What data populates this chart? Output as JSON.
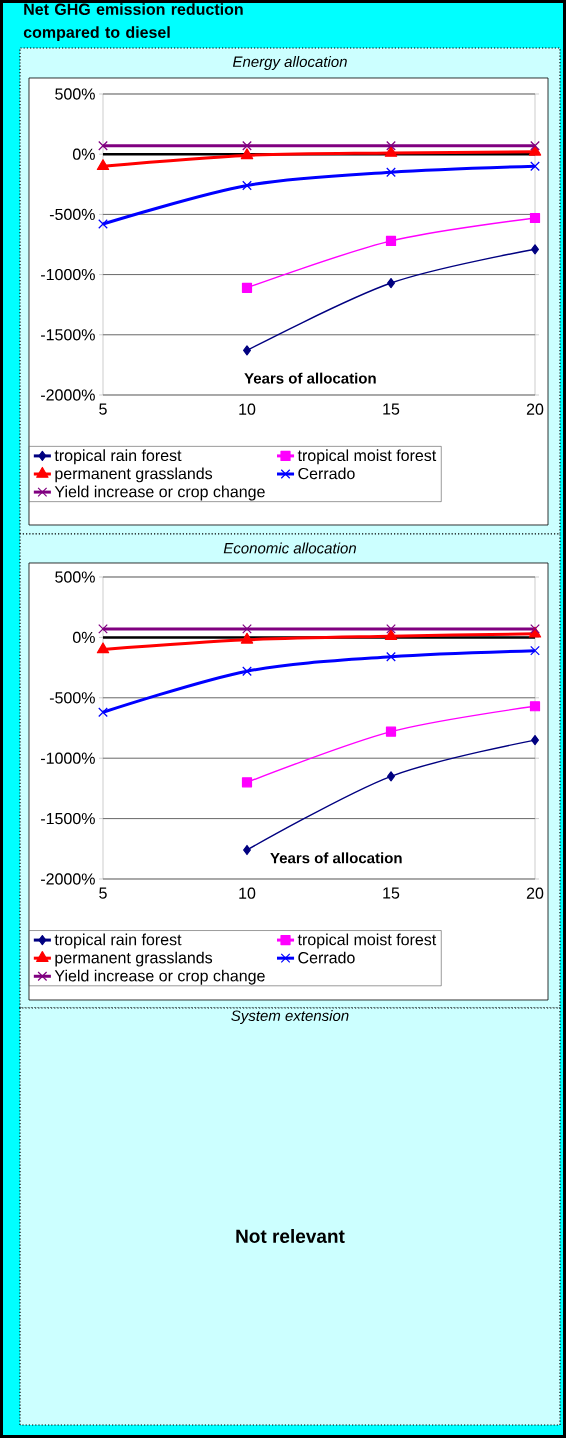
{
  "chart_data": [
    {
      "type": "line",
      "title": "Net GHG emission reduction compared to diesel",
      "subtitle": "Energy allocation",
      "xlabel": "Years of allocation",
      "x": [
        5,
        10,
        15,
        20
      ],
      "xlim": [
        5,
        20
      ],
      "xticks": [
        5,
        10,
        15,
        20
      ],
      "ylim": [
        -2000,
        500
      ],
      "yticks": [
        {
          "value": -2000,
          "label": "-2000%"
        },
        {
          "value": -1500,
          "label": "-1500%"
        },
        {
          "value": -1000,
          "label": "-1000%"
        },
        {
          "value": -500,
          "label": "-500%"
        },
        {
          "value": 0,
          "label": "0%"
        },
        {
          "value": 500,
          "label": "500%"
        }
      ],
      "grid": "y",
      "legend": "bottom",
      "ref_lines": [
        {
          "axis": "y",
          "value": 0,
          "color": "#000000"
        }
      ],
      "series": [
        {
          "name": "tropical rain forest",
          "color": "#000080",
          "marker": "diamond",
          "values": [
            null,
            -1630,
            -1070,
            -790
          ]
        },
        {
          "name": "tropical moist forest",
          "color": "#ff00ff",
          "marker": "square",
          "values": [
            null,
            -1110,
            -720,
            -530
          ]
        },
        {
          "name": "permanent grasslands",
          "color": "#ff0000",
          "marker": "triangle",
          "values": [
            -100,
            -10,
            10,
            20
          ]
        },
        {
          "name": "Cerrado",
          "color": "#0000ff",
          "marker": "cross",
          "values": [
            -580,
            -260,
            -150,
            -100
          ]
        },
        {
          "name": "Yield increase or crop change",
          "color": "#800080",
          "marker": "cross",
          "values": [
            70,
            70,
            70,
            70
          ]
        }
      ]
    },
    {
      "type": "line",
      "title": "Economic allocation",
      "xlabel": "Years of allocation",
      "x": [
        5,
        10,
        15,
        20
      ],
      "xlim": [
        5,
        20
      ],
      "xticks": [
        5,
        10,
        15,
        20
      ],
      "ylim": [
        -2000,
        500
      ],
      "yticks": [
        {
          "value": -2000,
          "label": "-2000%"
        },
        {
          "value": -1500,
          "label": "-1500%"
        },
        {
          "value": -1000,
          "label": "-1000%"
        },
        {
          "value": -500,
          "label": "-500%"
        },
        {
          "value": 0,
          "label": "0%"
        },
        {
          "value": 500,
          "label": "500%"
        }
      ],
      "grid": "y",
      "legend": "bottom",
      "ref_lines": [
        {
          "axis": "y",
          "value": 0,
          "color": "#000000"
        }
      ],
      "series": [
        {
          "name": "tropical rain forest",
          "color": "#000080",
          "marker": "diamond",
          "values": [
            null,
            -1760,
            -1150,
            -850
          ]
        },
        {
          "name": "tropical moist forest",
          "color": "#ff00ff",
          "marker": "square",
          "values": [
            null,
            -1200,
            -780,
            -570
          ]
        },
        {
          "name": "permanent grasslands",
          "color": "#ff0000",
          "marker": "triangle",
          "values": [
            -100,
            -20,
            10,
            30
          ]
        },
        {
          "name": "Cerrado",
          "color": "#0000ff",
          "marker": "cross",
          "values": [
            -620,
            -280,
            -160,
            -110
          ]
        },
        {
          "name": "Yield increase or crop change",
          "color": "#800080",
          "marker": "cross",
          "values": [
            70,
            70,
            70,
            70
          ]
        }
      ]
    },
    {
      "type": "other",
      "title": "System extension",
      "annotations": [
        "Not relevant"
      ]
    }
  ]
}
